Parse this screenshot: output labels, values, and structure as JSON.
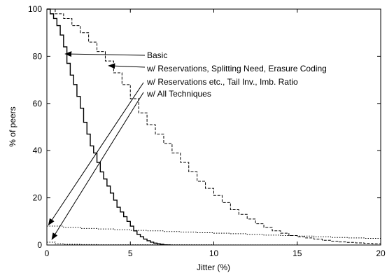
{
  "chart_data": {
    "type": "line",
    "title": "",
    "xlabel": "Jitter (%)",
    "ylabel": "% of peers",
    "xlim": [
      0,
      20
    ],
    "ylim": [
      0,
      100
    ],
    "xticks": [
      0,
      5,
      10,
      15,
      20
    ],
    "yticks": [
      0,
      20,
      40,
      60,
      80,
      100
    ],
    "grid": false,
    "legend": "none (annotations with arrows)",
    "series": [
      {
        "name": "Basic",
        "style": "solid",
        "x": [
          0,
          0.2,
          0.4,
          0.6,
          0.8,
          1.0,
          1.2,
          1.4,
          1.6,
          1.8,
          2.0,
          2.2,
          2.4,
          2.6,
          2.8,
          3.0,
          3.2,
          3.4,
          3.6,
          3.8,
          4.0,
          4.2,
          4.4,
          4.6,
          4.8,
          5.0,
          5.2,
          5.4,
          5.6,
          5.8,
          6.0,
          6.2,
          6.4,
          6.6,
          6.8,
          7.0,
          7.2,
          7.4
        ],
        "y": [
          100,
          98,
          96,
          93,
          89,
          84,
          77,
          72,
          68,
          63,
          58,
          52,
          47,
          42,
          39,
          35,
          31,
          28,
          25,
          22,
          19,
          16,
          14,
          12,
          10,
          8,
          6,
          4.5,
          3.5,
          2.5,
          1.8,
          1.2,
          0.8,
          0.5,
          0.3,
          0.1,
          0.05,
          0
        ]
      },
      {
        "name": "w/ Reservations, Splitting Need, Erasure Coding",
        "style": "dashed",
        "x": [
          0,
          0.5,
          1.0,
          1.5,
          2.0,
          2.5,
          3.0,
          3.5,
          4.0,
          4.5,
          5.0,
          5.5,
          6.0,
          6.5,
          7.0,
          7.5,
          8.0,
          8.5,
          9.0,
          9.5,
          10.0,
          10.5,
          11.0,
          11.5,
          12.0,
          12.5,
          13.0,
          13.5,
          14.0,
          14.5,
          15.0,
          15.5,
          16.0,
          16.5,
          17.0,
          17.5,
          18.0,
          18.5,
          19.0,
          19.5,
          20.0
        ],
        "y": [
          100,
          98,
          96,
          93,
          90,
          86,
          82,
          78,
          73,
          68,
          62,
          56,
          51,
          47,
          43,
          39,
          35,
          31,
          27,
          24,
          21,
          18,
          15,
          13,
          11,
          9,
          7.5,
          6,
          5,
          4,
          3.5,
          3,
          2.5,
          2,
          1.6,
          1.3,
          1.1,
          0.9,
          0.7,
          0.5,
          0.3
        ]
      },
      {
        "name": "w/ Reservations etc., Tail Inv., Imb. Ratio",
        "style": "dotted",
        "x": [
          0,
          1,
          2,
          3,
          4,
          5,
          6,
          7,
          8,
          9,
          10,
          11,
          12,
          13,
          14,
          15,
          16,
          17,
          18,
          19,
          20
        ],
        "y": [
          8,
          7.5,
          7,
          6.8,
          6.5,
          6.2,
          6,
          5.7,
          5.5,
          5.2,
          5,
          4.8,
          4.5,
          4.2,
          4,
          3.8,
          3.5,
          3.2,
          3,
          2.8,
          2.5
        ]
      },
      {
        "name": "w/ All Techniques",
        "style": "dotted",
        "x": [
          0,
          0.5,
          1,
          2,
          3,
          4,
          5,
          10,
          15,
          20
        ],
        "y": [
          1.2,
          0.5,
          0.3,
          0.2,
          0.1,
          0.1,
          0.1,
          0.05,
          0,
          0
        ]
      }
    ],
    "annotations": [
      {
        "text": "Basic",
        "arrow_to": [
          1.1,
          81
        ]
      },
      {
        "text": "w/ Reservations, Splitting Need, Erasure Coding",
        "arrow_to": [
          3.7,
          76
        ]
      },
      {
        "text": "w/ Reservations etc., Tail Inv., Imb. Ratio",
        "arrow_to": [
          0.1,
          8.5
        ]
      },
      {
        "text": "w/ All Techniques",
        "arrow_to": [
          0.3,
          2.4
        ]
      }
    ]
  }
}
